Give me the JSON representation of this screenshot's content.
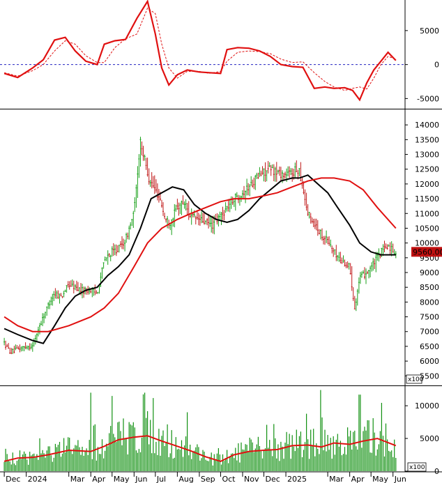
{
  "chart_data": [
    {
      "type": "line",
      "panel": "macd",
      "ylim": [
        -6500,
        9500
      ],
      "yticks": [
        -5000,
        0,
        5000
      ],
      "series": [
        {
          "role": "signal",
          "color": "#e01010",
          "style": "dashed",
          "x": [
            "2023-12-01",
            "2023-12-20",
            "2024-01-10",
            "2024-01-25",
            "2024-02-10",
            "2024-02-25",
            "2024-03-10",
            "2024-03-25",
            "2024-04-10",
            "2024-04-20",
            "2024-05-05",
            "2024-05-20",
            "2024-06-05",
            "2024-06-20",
            "2024-07-01",
            "2024-07-10",
            "2024-07-20",
            "2024-08-01",
            "2024-08-15",
            "2024-09-01",
            "2024-09-15",
            "2024-10-01",
            "2024-10-10",
            "2024-10-25",
            "2024-11-10",
            "2024-11-25",
            "2024-12-10",
            "2024-12-25",
            "2025-01-10",
            "2025-01-25",
            "2025-02-10",
            "2025-02-25",
            "2025-03-10",
            "2025-03-25",
            "2025-04-05",
            "2025-04-15",
            "2025-04-25",
            "2025-05-05",
            "2025-05-15",
            "2025-05-25",
            "2025-06-05"
          ],
          "values": [
            -1200,
            -1700,
            -900,
            0,
            2000,
            3500,
            3000,
            1300,
            300,
            300,
            2500,
            3800,
            4500,
            8300,
            7500,
            3000,
            -500,
            -2000,
            -1000,
            -1000,
            -1300,
            -1000,
            500,
            1800,
            2000,
            1900,
            1600,
            800,
            300,
            400,
            -1200,
            -2500,
            -3300,
            -3800,
            -3500,
            -3300,
            -3600,
            -2000,
            0,
            1200,
            800
          ]
        },
        {
          "role": "macd",
          "color": "#e01010",
          "style": "solid",
          "x": [
            "2023-12-01",
            "2023-12-20",
            "2024-01-10",
            "2024-01-25",
            "2024-02-10",
            "2024-02-25",
            "2024-03-10",
            "2024-03-25",
            "2024-04-10",
            "2024-04-20",
            "2024-05-05",
            "2024-05-20",
            "2024-06-05",
            "2024-06-20",
            "2024-07-01",
            "2024-07-10",
            "2024-07-20",
            "2024-08-01",
            "2024-08-15",
            "2024-09-01",
            "2024-09-15",
            "2024-10-01",
            "2024-10-10",
            "2024-10-25",
            "2024-11-10",
            "2024-11-25",
            "2024-12-10",
            "2024-12-25",
            "2025-01-10",
            "2025-01-25",
            "2025-02-10",
            "2025-02-25",
            "2025-03-10",
            "2025-03-25",
            "2025-04-05",
            "2025-04-15",
            "2025-04-25",
            "2025-05-05",
            "2025-05-15",
            "2025-05-25",
            "2025-06-05"
          ],
          "values": [
            -1300,
            -1900,
            -500,
            700,
            3600,
            4000,
            2000,
            500,
            0,
            3000,
            3500,
            3700,
            6800,
            9300,
            4500,
            -500,
            -3000,
            -1500,
            -800,
            -1100,
            -1200,
            -1300,
            2200,
            2500,
            2400,
            2000,
            1200,
            0,
            -300,
            -400,
            -3500,
            -3300,
            -3500,
            -3400,
            -3800,
            -5200,
            -2700,
            -800,
            500,
            1800,
            600
          ]
        }
      ]
    },
    {
      "type": "candlestick",
      "panel": "price",
      "price_label": "9560.00",
      "ylim": [
        5200,
        14500
      ],
      "yticks": [
        5500,
        6000,
        6500,
        7000,
        7500,
        8000,
        8500,
        9000,
        9500,
        10000,
        10500,
        11000,
        11500,
        12000,
        12500,
        13000,
        13500,
        14000
      ],
      "close": {
        "x": [
          "2023-12-01",
          "2023-12-10",
          "2023-12-20",
          "2024-01-01",
          "2024-01-10",
          "2024-01-20",
          "2024-02-01",
          "2024-02-10",
          "2024-02-20",
          "2024-03-01",
          "2024-03-10",
          "2024-03-20",
          "2024-04-01",
          "2024-04-10",
          "2024-04-20",
          "2024-05-01",
          "2024-05-10",
          "2024-05-20",
          "2024-06-01",
          "2024-06-10",
          "2024-06-15",
          "2024-06-22",
          "2024-07-01",
          "2024-07-08",
          "2024-07-15",
          "2024-07-22",
          "2024-08-01",
          "2024-08-10",
          "2024-08-20",
          "2024-09-01",
          "2024-09-10",
          "2024-09-20",
          "2024-10-01",
          "2024-10-10",
          "2024-10-20",
          "2024-11-01",
          "2024-11-10",
          "2024-11-20",
          "2024-12-01",
          "2024-12-10",
          "2024-12-20",
          "2025-01-01",
          "2025-01-10",
          "2025-01-20",
          "2025-02-01",
          "2025-02-10",
          "2025-02-20",
          "2025-03-01",
          "2025-03-10",
          "2025-03-20",
          "2025-04-01",
          "2025-04-08",
          "2025-04-15",
          "2025-04-25",
          "2025-05-05",
          "2025-05-15",
          "2025-05-25",
          "2025-06-05"
        ],
        "values": [
          6600,
          6300,
          6400,
          6500,
          6500,
          7200,
          7900,
          8300,
          8200,
          8600,
          8500,
          8400,
          8400,
          8300,
          9400,
          9700,
          9800,
          10100,
          11000,
          13500,
          12900,
          12200,
          11800,
          11500,
          10800,
          10700,
          11200,
          11400,
          10900,
          10800,
          10700,
          10600,
          10900,
          11200,
          11500,
          11700,
          11900,
          12200,
          12400,
          12500,
          12400,
          12300,
          12400,
          12500,
          11000,
          10700,
          10300,
          10100,
          9700,
          9400,
          9200,
          7800,
          8800,
          9000,
          9300,
          9700,
          9900,
          9700
        ]
      },
      "series": [
        {
          "role": "ma_short",
          "color": "#000000",
          "x": [
            "2023-12-01",
            "2023-12-20",
            "2024-01-10",
            "2024-01-25",
            "2024-02-10",
            "2024-02-25",
            "2024-03-10",
            "2024-03-25",
            "2024-04-10",
            "2024-04-25",
            "2024-05-10",
            "2024-05-25",
            "2024-06-10",
            "2024-06-25",
            "2024-07-10",
            "2024-07-25",
            "2024-08-10",
            "2024-08-25",
            "2024-09-10",
            "2024-09-25",
            "2024-10-10",
            "2024-10-25",
            "2024-11-10",
            "2024-11-25",
            "2024-12-10",
            "2024-12-25",
            "2025-01-10",
            "2025-01-20",
            "2025-02-01",
            "2025-02-15",
            "2025-03-01",
            "2025-03-15",
            "2025-04-01",
            "2025-04-15",
            "2025-05-01",
            "2025-05-15",
            "2025-06-05"
          ],
          "values": [
            7100,
            6900,
            6700,
            6600,
            7200,
            7800,
            8200,
            8400,
            8500,
            8900,
            9200,
            9600,
            10500,
            11500,
            11700,
            11900,
            11800,
            11300,
            11000,
            10800,
            10700,
            10800,
            11100,
            11500,
            11800,
            12100,
            12200,
            12200,
            12300,
            12000,
            11700,
            11200,
            10600,
            10000,
            9700,
            9600,
            9600
          ]
        },
        {
          "role": "ma_long",
          "color": "#e01010",
          "x": [
            "2023-12-01",
            "2023-12-20",
            "2024-01-10",
            "2024-02-01",
            "2024-03-01",
            "2024-04-01",
            "2024-04-20",
            "2024-05-10",
            "2024-06-01",
            "2024-06-20",
            "2024-07-10",
            "2024-08-01",
            "2024-08-20",
            "2024-09-10",
            "2024-10-01",
            "2024-10-20",
            "2024-11-10",
            "2024-12-01",
            "2024-12-20",
            "2025-01-10",
            "2025-02-01",
            "2025-02-20",
            "2025-03-10",
            "2025-04-01",
            "2025-04-20",
            "2025-05-10",
            "2025-06-05"
          ],
          "values": [
            7500,
            7200,
            7000,
            7000,
            7200,
            7500,
            7800,
            8300,
            9200,
            10000,
            10500,
            10800,
            11000,
            11200,
            11400,
            11500,
            11500,
            11600,
            11700,
            11900,
            12100,
            12200,
            12200,
            12100,
            11800,
            11200,
            10500
          ]
        }
      ]
    },
    {
      "type": "bar",
      "panel": "volume",
      "unit_label": "x100",
      "ylim": [
        0,
        13000
      ],
      "yticks": [
        0,
        5000,
        10000
      ],
      "ma": {
        "color": "#e01010",
        "x": [
          "2023-12-01",
          "2023-12-20",
          "2024-01-10",
          "2024-02-01",
          "2024-03-01",
          "2024-04-01",
          "2024-04-20",
          "2024-05-10",
          "2024-06-01",
          "2024-06-20",
          "2024-07-10",
          "2024-08-01",
          "2024-08-20",
          "2024-09-10",
          "2024-10-01",
          "2024-10-20",
          "2024-11-10",
          "2024-12-01",
          "2024-12-20",
          "2025-01-10",
          "2025-02-01",
          "2025-02-20",
          "2025-03-10",
          "2025-04-01",
          "2025-04-20",
          "2025-05-10",
          "2025-06-05"
        ],
        "values": [
          1500,
          2000,
          2100,
          2500,
          3200,
          3000,
          3800,
          4800,
          5200,
          5400,
          4600,
          3800,
          3100,
          2200,
          1500,
          2500,
          3000,
          3200,
          3300,
          3900,
          4000,
          3700,
          4300,
          4100,
          4600,
          5000,
          3900
        ]
      },
      "spikes": [
        {
          "x": "2024-04-01",
          "value": 12000
        },
        {
          "x": "2024-05-01",
          "value": 11500
        },
        {
          "x": "2024-06-15",
          "value": 12000
        },
        {
          "x": "2024-08-15",
          "value": 9000
        },
        {
          "x": "2025-02-20",
          "value": 12400
        },
        {
          "x": "2025-04-15",
          "value": 11700
        }
      ]
    },
    {
      "type": "axis",
      "panel": "time",
      "xlim": [
        "2023-11-25",
        "2025-06-18"
      ],
      "xticks": [
        {
          "x": "2023-12-01",
          "label": "Dec"
        },
        {
          "x": "2024-01-01",
          "label": "2024"
        },
        {
          "x": "2024-03-01",
          "label": "Mar"
        },
        {
          "x": "2024-04-01",
          "label": "Apr"
        },
        {
          "x": "2024-05-01",
          "label": "May"
        },
        {
          "x": "2024-06-01",
          "label": "Jun"
        },
        {
          "x": "2024-07-01",
          "label": "Jul"
        },
        {
          "x": "2024-08-01",
          "label": "Aug"
        },
        {
          "x": "2024-09-01",
          "label": "Sep"
        },
        {
          "x": "2024-10-01",
          "label": "Oct"
        },
        {
          "x": "2024-11-01",
          "label": "Nov"
        },
        {
          "x": "2024-12-01",
          "label": "Dec"
        },
        {
          "x": "2025-01-01",
          "label": "2025"
        },
        {
          "x": "2025-03-01",
          "label": "Mar"
        },
        {
          "x": "2025-04-01",
          "label": "Apr"
        },
        {
          "x": "2025-05-01",
          "label": "May"
        },
        {
          "x": "2025-06-01",
          "label": "Jun"
        }
      ]
    }
  ]
}
